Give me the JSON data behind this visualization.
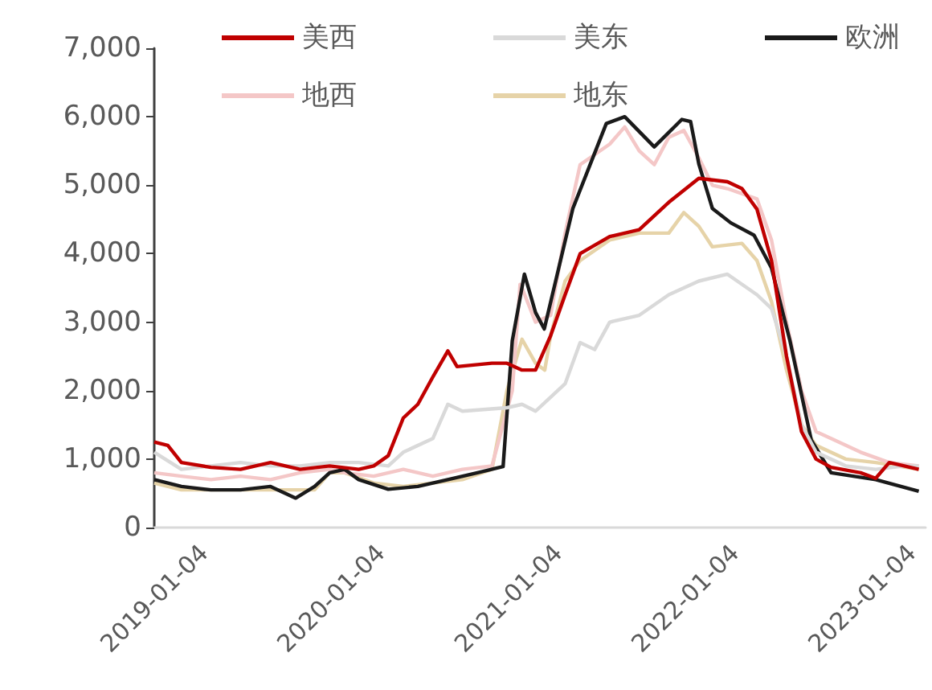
{
  "chart_data": {
    "type": "line",
    "legend": "top",
    "grid": false,
    "marker": "none",
    "line_style": "solid",
    "xlim": [
      "2019-01-04",
      "2023-05-15"
    ],
    "xticks": [
      "2019-01-04",
      "2020-01-04",
      "2021-01-04",
      "2022-01-04",
      "2023-01-04"
    ],
    "ylim": [
      0,
      7000
    ],
    "yticks": [
      0,
      {
        "value": 1000,
        "label": "1,000"
      },
      {
        "value": 2000,
        "label": "2,000"
      },
      {
        "value": 3000,
        "label": "3,000"
      },
      {
        "value": 4000,
        "label": "4,000"
      },
      {
        "value": 5000,
        "label": "5,000"
      },
      {
        "value": 6000,
        "label": "6,000"
      },
      {
        "value": 7000,
        "label": "7,000"
      }
    ],
    "series": [
      {
        "name": "美西",
        "color": "#c00000",
        "x": [
          "2019-01-04",
          "2019-02",
          "2019-03",
          "2019-05",
          "2019-07",
          "2019-09",
          "2019-11",
          "2020-01",
          "2020-03",
          "2020-04",
          "2020-05",
          "2020-06",
          "2020-07",
          "2020-08",
          "2020-09",
          "2020-09-20",
          "2020-12",
          "2021-01",
          "2021-02",
          "2021-03",
          "2021-04",
          "2021-05",
          "2021-06",
          "2021-08",
          "2021-10",
          "2021-12",
          "2022-02",
          "2022-04",
          "2022-05",
          "2022-06",
          "2022-07",
          "2022-08",
          "2022-09",
          "2022-10",
          "2022-11",
          "2023-01",
          "2023-02",
          "2023-03",
          "2023-04",
          "2023-05"
        ],
        "values": [
          1250,
          1200,
          950,
          880,
          850,
          950,
          850,
          900,
          850,
          900,
          1050,
          1600,
          1800,
          2200,
          2580,
          2350,
          2400,
          2400,
          2300,
          2300,
          2800,
          3400,
          4000,
          4250,
          4350,
          4750,
          5100,
          5050,
          4950,
          4650,
          3900,
          2500,
          1400,
          1000,
          880,
          800,
          720,
          950,
          900,
          850
        ]
      },
      {
        "name": "美东",
        "color": "#d9d9d9",
        "x": [
          "2019-01-04",
          "2019-03",
          "2019-05",
          "2019-07",
          "2019-09",
          "2019-11",
          "2020-01",
          "2020-03",
          "2020-05",
          "2020-06",
          "2020-08",
          "2020-09",
          "2020-10",
          "2021-01",
          "2021-02",
          "2021-03",
          "2021-05",
          "2021-06",
          "2021-07",
          "2021-08",
          "2021-10",
          "2021-12",
          "2022-02",
          "2022-04",
          "2022-06",
          "2022-07",
          "2022-08",
          "2022-09",
          "2022-10",
          "2022-12",
          "2023-02",
          "2023-04",
          "2023-05"
        ],
        "values": [
          1100,
          850,
          900,
          950,
          900,
          900,
          950,
          950,
          900,
          1100,
          1300,
          1800,
          1700,
          1750,
          1800,
          1700,
          2100,
          2700,
          2600,
          3000,
          3100,
          3400,
          3600,
          3700,
          3400,
          3200,
          2500,
          1500,
          1100,
          900,
          850,
          900,
          900
        ]
      },
      {
        "name": "欧洲",
        "color": "#1a1a1a",
        "x": [
          "2019-01-04",
          "2019-03",
          "2019-05",
          "2019-07",
          "2019-09",
          "2019-10-23",
          "2019-12",
          "2020-01",
          "2020-02",
          "2020-03",
          "2020-05",
          "2020-07",
          "2020-09",
          "2020-11",
          "2020-12-24",
          "2021-01-12",
          "2021-02-06",
          "2021-03-01",
          "2021-03-19",
          "2021-05-17",
          "2021-07-25",
          "2021-09",
          "2021-11",
          "2021-12-28",
          "2022-01-15",
          "2022-02",
          "2022-03",
          "2022-04-08",
          "2022-05-26",
          "2022-07",
          "2022-08-08",
          "2022-09-21",
          "2022-11",
          "2023-02",
          "2023-05"
        ],
        "values": [
          700,
          600,
          550,
          550,
          600,
          430,
          600,
          800,
          850,
          700,
          560,
          600,
          700,
          800,
          890,
          2730,
          3700,
          3140,
          2900,
          4660,
          5900,
          6000,
          5560,
          5960,
          5930,
          5310,
          4660,
          4450,
          4270,
          3790,
          2730,
          1280,
          800,
          700,
          530
        ]
      },
      {
        "name": "地西",
        "color": "#f4c7c7",
        "x": [
          "2019-01-04",
          "2019-03",
          "2019-05",
          "2019-07",
          "2019-09",
          "2019-11",
          "2020-01",
          "2020-02",
          "2020-04",
          "2020-06",
          "2020-08",
          "2020-10",
          "2020-12",
          "2021-01-12",
          "2021-01-28",
          "2021-02",
          "2021-03",
          "2021-04",
          "2021-05",
          "2021-06",
          "2021-08",
          "2021-09",
          "2021-10",
          "2021-11",
          "2021-12",
          "2022-01",
          "2022-02",
          "2022-03",
          "2022-04",
          "2022-06",
          "2022-07",
          "2022-08",
          "2022-09",
          "2022-10",
          "2022-11",
          "2023-01",
          "2023-03",
          "2023-05"
        ],
        "values": [
          800,
          750,
          700,
          750,
          700,
          800,
          850,
          800,
          750,
          850,
          750,
          850,
          900,
          2000,
          3550,
          3500,
          3000,
          3100,
          4300,
          5300,
          5600,
          5850,
          5500,
          5300,
          5700,
          5800,
          5400,
          5000,
          4950,
          4800,
          4200,
          3000,
          2000,
          1400,
          1300,
          1100,
          950,
          900
        ]
      },
      {
        "name": "地东",
        "color": "#e6d3a8",
        "x": [
          "2019-01-04",
          "2019-03",
          "2019-06",
          "2019-09",
          "2019-12",
          "2020-01",
          "2020-02",
          "2020-04",
          "2020-06",
          "2020-08",
          "2020-10",
          "2020-12",
          "2021-01",
          "2021-02",
          "2021-03",
          "2021-03-20",
          "2021-04",
          "2021-05",
          "2021-06",
          "2021-08",
          "2021-10",
          "2021-12",
          "2022-01",
          "2022-02",
          "2022-03",
          "2022-05",
          "2022-06",
          "2022-07",
          "2022-08",
          "2022-09",
          "2022-10",
          "2022-12",
          "2023-02",
          "2023-05"
        ],
        "values": [
          650,
          550,
          550,
          550,
          550,
          800,
          800,
          650,
          600,
          650,
          700,
          850,
          2000,
          2750,
          2400,
          2300,
          2800,
          3600,
          3900,
          4200,
          4300,
          4300,
          4600,
          4400,
          4100,
          4150,
          3900,
          3300,
          2300,
          1500,
          1200,
          1000,
          950,
          850
        ]
      }
    ]
  }
}
